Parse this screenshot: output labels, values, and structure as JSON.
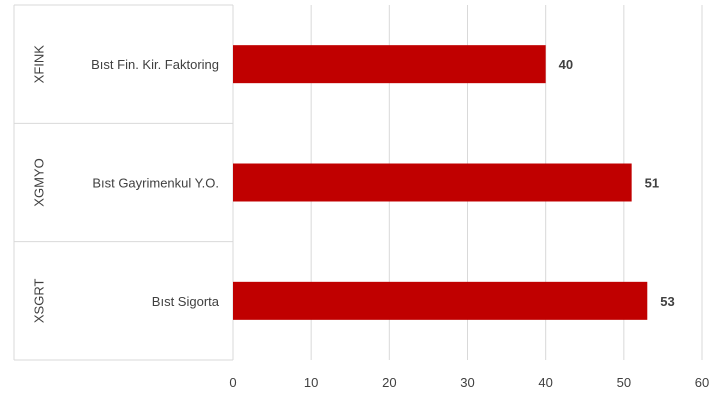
{
  "chart_data": {
    "type": "bar",
    "orientation": "horizontal",
    "groups": [
      {
        "code": "XFINK",
        "category": "Bıst Fin. Kir. Faktoring",
        "value": 40,
        "label": "40"
      },
      {
        "code": "XGMYO",
        "category": "Bıst Gayrimenkul Y.O.",
        "value": 51,
        "label": "51"
      },
      {
        "code": "XSGRT",
        "category": "Bıst Sigorta",
        "value": 53,
        "label": "53"
      }
    ],
    "xticks": [
      "0",
      "10",
      "20",
      "30",
      "40",
      "50",
      "60"
    ],
    "xlim": [
      0,
      60
    ],
    "grid": "vertical",
    "bar_color": "#c00000",
    "title": "",
    "xlabel": "",
    "ylabel": ""
  }
}
